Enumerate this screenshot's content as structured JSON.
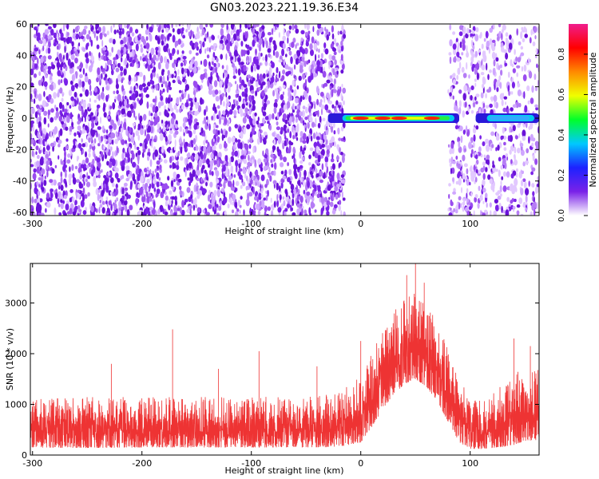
{
  "title": "GN03.2023.221.19.36.E34",
  "colors": {
    "snr_line": "#ee3333",
    "spectrogram_base": "#7a22e8",
    "axis": "#000000"
  },
  "chart_data": [
    {
      "type": "heatmap",
      "xlabel": "Height of straight line (km)",
      "ylabel": "Frequency (Hz)",
      "xlim": [
        -302,
        163
      ],
      "ylim": [
        -62,
        60
      ],
      "xticks": [
        -300,
        -200,
        -100,
        0,
        100
      ],
      "yticks": [
        60,
        40,
        20,
        0,
        -20,
        -40,
        -60
      ],
      "colorbar": {
        "label": "Normalized spectral amplitude",
        "range": [
          0,
          0.95
        ],
        "ticks": [
          0.0,
          0.2,
          0.4,
          0.6,
          0.8
        ],
        "colormap": [
          "#ffffff",
          "#7a22e8",
          "#1d22ff",
          "#00c8ff",
          "#00ff2a",
          "#f0ff00",
          "#ff8a00",
          "#ff0000",
          "#f01e8c"
        ]
      },
      "features": [
        {
          "x_range": [
            -302,
            -15
          ],
          "y_range": [
            -62,
            60
          ],
          "amplitude": 0.15,
          "description": "broadband noise"
        },
        {
          "x_range": [
            -30,
            90
          ],
          "y_range": [
            -3,
            3
          ],
          "amplitude": 0.95,
          "description": "strong band near 0 Hz"
        },
        {
          "x_range": [
            105,
            163
          ],
          "y_range": [
            -2,
            2
          ],
          "amplitude": 0.35,
          "description": "weaker band near 0 Hz"
        },
        {
          "x_range": [
            80,
            163
          ],
          "y_range": [
            -62,
            60
          ],
          "amplitude": 0.1,
          "description": "broadband noise"
        }
      ]
    },
    {
      "type": "line",
      "xlabel": "Height of straight line (km)",
      "ylabel": "SNR (10 * v/v)",
      "xlim": [
        -302,
        163
      ],
      "ylim": [
        0,
        3780
      ],
      "xticks": [
        -300,
        -200,
        -100,
        0,
        100
      ],
      "yticks": [
        0,
        1000,
        2000,
        3000
      ],
      "grid": false,
      "series": [
        {
          "envelope_x": [
            -302,
            -250,
            -200,
            -150,
            -100,
            -50,
            -20,
            0,
            10,
            20,
            30,
            40,
            50,
            60,
            70,
            80,
            90,
            100,
            110,
            120,
            130,
            140,
            150,
            163
          ],
          "envelope_lower": [
            150,
            140,
            150,
            150,
            150,
            150,
            160,
            250,
            550,
            900,
            1200,
            1400,
            1500,
            1350,
            1050,
            650,
            250,
            120,
            120,
            140,
            160,
            200,
            280,
            300
          ],
          "envelope_upper": [
            1100,
            1150,
            1150,
            1150,
            1150,
            1150,
            1250,
            1600,
            2000,
            2500,
            2900,
            3100,
            3200,
            3000,
            2600,
            2100,
            1500,
            1150,
            1100,
            1200,
            1400,
            1650,
            1800,
            1800
          ],
          "spikes": [
            [
              -172,
              2480
            ],
            [
              -93,
              2050
            ],
            [
              -228,
              1800
            ],
            [
              -130,
              1700
            ],
            [
              -40,
              1750
            ],
            [
              0,
              2250
            ],
            [
              50,
              3780
            ],
            [
              42,
              3550
            ],
            [
              58,
              3400
            ],
            [
              140,
              2300
            ],
            [
              155,
              2150
            ]
          ]
        }
      ]
    }
  ]
}
